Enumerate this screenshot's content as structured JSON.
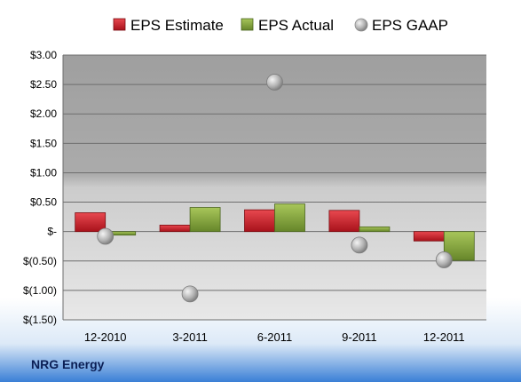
{
  "company": "NRG Energy",
  "chart_data": {
    "type": "bar",
    "categories": [
      "12-2010",
      "3-2011",
      "6-2011",
      "9-2011",
      "12-2011"
    ],
    "series": [
      {
        "name": "EPS Estimate",
        "kind": "bar",
        "color": "#c0202a",
        "values": [
          0.32,
          0.11,
          0.37,
          0.36,
          -0.16
        ]
      },
      {
        "name": "EPS Actual",
        "kind": "bar",
        "color": "#7fa03a",
        "values": [
          -0.06,
          0.41,
          0.47,
          0.08,
          -0.49
        ]
      },
      {
        "name": "EPS GAAP",
        "kind": "point",
        "color": "#a9a9a9",
        "values": [
          -0.08,
          -1.06,
          2.54,
          -0.23,
          -0.48
        ]
      }
    ],
    "ylim": [
      -1.5,
      3.0
    ],
    "ytick_values": [
      3.0,
      2.5,
      2.0,
      1.5,
      1.0,
      0.5,
      0,
      -0.5,
      -1.0,
      -1.5
    ],
    "ytick_labels": [
      "$3.00",
      "$2.50",
      "$2.00",
      "$1.50",
      "$1.00",
      "$0.50",
      "$-",
      "$(0.50)",
      "$(1.00)",
      "$(1.50)"
    ],
    "grid": true,
    "legend_position": "top-center",
    "plot_background": "#a6a6a6"
  }
}
